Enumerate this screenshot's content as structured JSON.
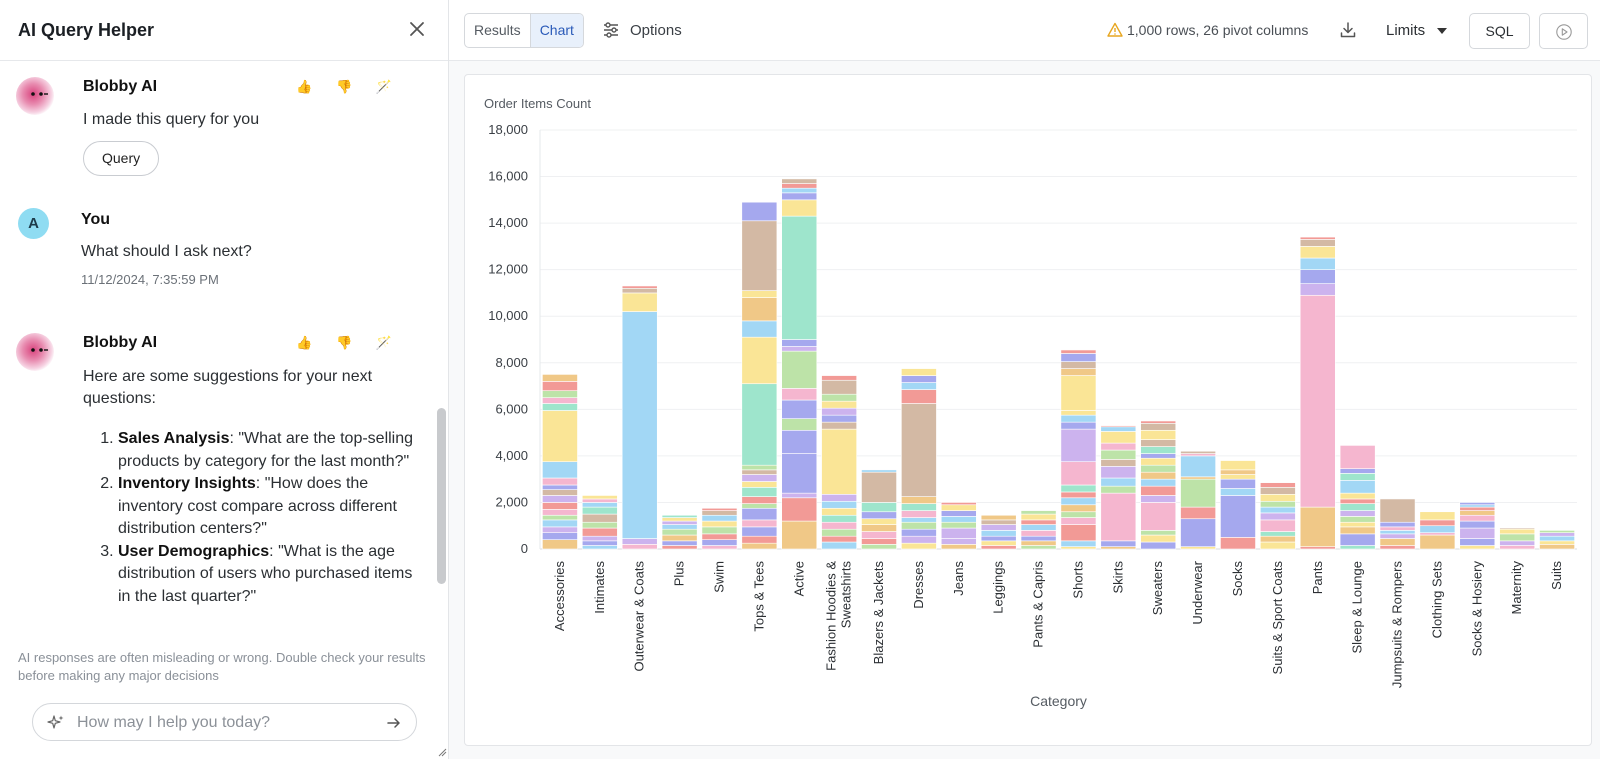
{
  "left_panel": {
    "title": "AI Query Helper",
    "messages": [
      {
        "author": "Blobby AI",
        "text": "I made this query for you",
        "button": "Query",
        "reactions": "👍 👎 🪄"
      },
      {
        "author": "You",
        "avatar_letter": "A",
        "text": "What should I ask next?",
        "timestamp": "11/12/2024, 7:35:59 PM"
      },
      {
        "author": "Blobby AI",
        "reactions": "👍 👎 🪄",
        "intro": "Here are some suggestions for your next questions:",
        "suggestions": [
          {
            "title": "Sales Analysis",
            "body": ": \"What are the top-selling products by category for the last month?\""
          },
          {
            "title": "Inventory Insights",
            "body": ": \"How does the inventory cost compare across different distribution centers?\""
          },
          {
            "title": "User Demographics",
            "body": ": \"What is the age distribution of users who purchased items in the last quarter?\""
          }
        ]
      }
    ],
    "disclaimer": "AI responses are often misleading or wrong. Double check your results before making any major decisions",
    "input_placeholder": "How may I help you today?"
  },
  "toolbar": {
    "tabs": [
      "Results",
      "Chart"
    ],
    "active_tab": "Chart",
    "options_label": "Options",
    "warning": "1,000 rows, 26 pivot columns",
    "limits_label": "Limits",
    "sql_label": "SQL"
  },
  "colors": {
    "palette": [
      "#f0c887",
      "#a5a8ee",
      "#f29a96",
      "#bde3a8",
      "#f5b6cf",
      "#ccb3ee",
      "#fae596",
      "#a2d7f5",
      "#9ee5cc",
      "#d3b9a4"
    ]
  },
  "chart_data": {
    "type": "bar",
    "stacked": true,
    "ylabel": "Order Items Count",
    "xlabel": "Category",
    "ylim": [
      0,
      18000
    ],
    "yticks": [
      0,
      2000,
      4000,
      6000,
      8000,
      10000,
      12000,
      14000,
      16000,
      18000
    ],
    "ytick_labels": [
      "0",
      "2,000",
      "4,000",
      "6,000",
      "8,000",
      "10,000",
      "12,000",
      "14,000",
      "16,000",
      "18,000"
    ],
    "categories": [
      "Accessories",
      "Intimates",
      "Outerwear & Coats",
      "Plus",
      "Swim",
      "Tops & Tees",
      "Active",
      "Fashion Hoodies & Sweatshirts",
      "Blazers & Jackets",
      "Dresses",
      "Jeans",
      "Leggings",
      "Pants & Capris",
      "Shorts",
      "Skirts",
      "Sweaters",
      "Underwear",
      "Socks",
      "Suits & Sport Coats",
      "Pants",
      "Sleep & Lounge",
      "Jumpsuits & Rompers",
      "Clothing Sets",
      "Socks & Hosiery",
      "Maternity",
      "Suits"
    ],
    "category_labels": [
      [
        "Accessories"
      ],
      [
        "Intimates"
      ],
      [
        "Outerwear & Coats"
      ],
      [
        "Plus"
      ],
      [
        "Swim"
      ],
      [
        "Tops & Tees"
      ],
      [
        "Active"
      ],
      [
        "Fashion Hoodies &",
        "Sweatshirts"
      ],
      [
        "Blazers & Jackets"
      ],
      [
        "Dresses"
      ],
      [
        "Jeans"
      ],
      [
        "Leggings"
      ],
      [
        "Pants & Capris"
      ],
      [
        "Shorts"
      ],
      [
        "Skirts"
      ],
      [
        "Sweaters"
      ],
      [
        "Underwear"
      ],
      [
        "Socks"
      ],
      [
        "Suits & Sport Coats"
      ],
      [
        "Pants"
      ],
      [
        "Sleep & Lounge"
      ],
      [
        "Jumpsuits & Rompers"
      ],
      [
        "Clothing Sets"
      ],
      [
        "Socks & Hosiery"
      ],
      [
        "Maternity"
      ],
      [
        "Suits"
      ]
    ],
    "stacks": [
      [
        [
          400,
          0
        ],
        [
          300,
          1
        ],
        [
          250,
          5
        ],
        [
          300,
          7
        ],
        [
          200,
          3
        ],
        [
          250,
          4
        ],
        [
          300,
          2
        ],
        [
          300,
          5
        ],
        [
          250,
          9
        ],
        [
          200,
          1
        ],
        [
          300,
          4
        ],
        [
          700,
          7
        ],
        [
          2200,
          6
        ],
        [
          300,
          8
        ],
        [
          250,
          4
        ],
        [
          300,
          3
        ],
        [
          400,
          2
        ],
        [
          300,
          0
        ]
      ],
      [
        [
          150,
          7
        ],
        [
          200,
          1
        ],
        [
          200,
          5
        ],
        [
          350,
          2
        ],
        [
          250,
          3
        ],
        [
          350,
          9
        ],
        [
          300,
          8
        ],
        [
          200,
          7
        ],
        [
          150,
          4
        ],
        [
          150,
          6
        ]
      ],
      [
        [
          200,
          4
        ],
        [
          250,
          5
        ],
        [
          9750,
          7
        ],
        [
          800,
          6
        ],
        [
          200,
          9
        ],
        [
          100,
          2
        ]
      ],
      [
        [
          150,
          2
        ],
        [
          200,
          1
        ],
        [
          250,
          0
        ],
        [
          250,
          3
        ],
        [
          200,
          7
        ],
        [
          150,
          5
        ],
        [
          150,
          6
        ],
        [
          100,
          8
        ]
      ],
      [
        [
          150,
          4
        ],
        [
          250,
          1
        ],
        [
          250,
          2
        ],
        [
          300,
          3
        ],
        [
          250,
          6
        ],
        [
          250,
          7
        ],
        [
          200,
          9
        ],
        [
          100,
          2
        ]
      ],
      [
        [
          250,
          0
        ],
        [
          300,
          2
        ],
        [
          400,
          1
        ],
        [
          300,
          4
        ],
        [
          500,
          1
        ],
        [
          200,
          3
        ],
        [
          300,
          2
        ],
        [
          400,
          8
        ],
        [
          250,
          6
        ],
        [
          300,
          5
        ],
        [
          200,
          9
        ],
        [
          200,
          3
        ],
        [
          3500,
          8
        ],
        [
          2000,
          6
        ],
        [
          700,
          7
        ],
        [
          1000,
          0
        ],
        [
          300,
          6
        ],
        [
          3000,
          9
        ],
        [
          800,
          1
        ]
      ],
      [
        [
          1200,
          0
        ],
        [
          1000,
          2
        ],
        [
          200,
          5
        ],
        [
          1700,
          1
        ],
        [
          1000,
          1
        ],
        [
          500,
          3
        ],
        [
          800,
          1
        ],
        [
          500,
          4
        ],
        [
          1600,
          3
        ],
        [
          200,
          5
        ],
        [
          300,
          1
        ],
        [
          5300,
          8
        ],
        [
          700,
          6
        ],
        [
          300,
          1
        ],
        [
          200,
          7
        ],
        [
          200,
          2
        ],
        [
          200,
          9
        ]
      ],
      [
        [
          300,
          7
        ],
        [
          250,
          2
        ],
        [
          300,
          3
        ],
        [
          300,
          4
        ],
        [
          300,
          8
        ],
        [
          300,
          6
        ],
        [
          300,
          7
        ],
        [
          300,
          5
        ],
        [
          2800,
          6
        ],
        [
          300,
          9
        ],
        [
          300,
          1
        ],
        [
          300,
          5
        ],
        [
          300,
          6
        ],
        [
          300,
          3
        ],
        [
          600,
          9
        ],
        [
          200,
          2
        ]
      ],
      [
        [
          200,
          3
        ],
        [
          250,
          2
        ],
        [
          300,
          4
        ],
        [
          300,
          0
        ],
        [
          250,
          6
        ],
        [
          300,
          1
        ],
        [
          400,
          8
        ],
        [
          1300,
          9
        ],
        [
          100,
          7
        ]
      ],
      [
        [
          250,
          6
        ],
        [
          300,
          5
        ],
        [
          300,
          1
        ],
        [
          300,
          3
        ],
        [
          200,
          7
        ],
        [
          300,
          4
        ],
        [
          300,
          8
        ],
        [
          300,
          0
        ],
        [
          4000,
          9
        ],
        [
          600,
          2
        ],
        [
          300,
          7
        ],
        [
          300,
          1
        ],
        [
          300,
          6
        ]
      ],
      [
        [
          200,
          0
        ],
        [
          250,
          5
        ],
        [
          450,
          5
        ],
        [
          250,
          3
        ],
        [
          250,
          7
        ],
        [
          250,
          1
        ],
        [
          250,
          6
        ],
        [
          100,
          2
        ]
      ],
      [
        [
          150,
          2
        ],
        [
          200,
          6
        ],
        [
          200,
          1
        ],
        [
          250,
          7
        ],
        [
          250,
          5
        ],
        [
          200,
          9
        ],
        [
          200,
          0
        ]
      ],
      [
        [
          150,
          3
        ],
        [
          200,
          0
        ],
        [
          200,
          1
        ],
        [
          250,
          4
        ],
        [
          250,
          7
        ],
        [
          200,
          2
        ],
        [
          250,
          6
        ],
        [
          150,
          3
        ]
      ],
      [
        [
          100,
          6
        ],
        [
          250,
          7
        ],
        [
          700,
          2
        ],
        [
          300,
          4
        ],
        [
          250,
          3
        ],
        [
          300,
          0
        ],
        [
          300,
          7
        ],
        [
          250,
          2
        ],
        [
          300,
          8
        ],
        [
          1000,
          4
        ],
        [
          1400,
          5
        ],
        [
          300,
          1
        ],
        [
          300,
          7
        ],
        [
          200,
          6
        ],
        [
          1500,
          6
        ],
        [
          300,
          0
        ],
        [
          300,
          9
        ],
        [
          350,
          1
        ],
        [
          150,
          2
        ]
      ],
      [
        [
          100,
          0
        ],
        [
          250,
          1
        ],
        [
          2050,
          4
        ],
        [
          300,
          3
        ],
        [
          350,
          7
        ],
        [
          500,
          5
        ],
        [
          300,
          9
        ],
        [
          400,
          3
        ],
        [
          300,
          4
        ],
        [
          500,
          6
        ],
        [
          200,
          7
        ],
        [
          50,
          2
        ]
      ],
      [
        [
          300,
          1
        ],
        [
          300,
          6
        ],
        [
          200,
          3
        ],
        [
          1200,
          4
        ],
        [
          300,
          5
        ],
        [
          400,
          2
        ],
        [
          300,
          7
        ],
        [
          300,
          0
        ],
        [
          300,
          3
        ],
        [
          300,
          6
        ],
        [
          200,
          1
        ],
        [
          300,
          8
        ],
        [
          300,
          9
        ],
        [
          400,
          6
        ],
        [
          300,
          9
        ],
        [
          100,
          2
        ]
      ],
      [
        [
          100,
          6
        ],
        [
          1200,
          1
        ],
        [
          500,
          2
        ],
        [
          1200,
          3
        ],
        [
          100,
          0
        ],
        [
          900,
          7
        ],
        [
          100,
          4
        ],
        [
          100,
          9
        ]
      ],
      [
        [
          500,
          2
        ],
        [
          1800,
          1
        ],
        [
          300,
          7
        ],
        [
          400,
          1
        ],
        [
          200,
          6
        ],
        [
          200,
          0
        ],
        [
          400,
          6
        ]
      ],
      [
        [
          300,
          6
        ],
        [
          250,
          0
        ],
        [
          200,
          8
        ],
        [
          500,
          4
        ],
        [
          300,
          5
        ],
        [
          250,
          7
        ],
        [
          250,
          3
        ],
        [
          300,
          6
        ],
        [
          300,
          9
        ],
        [
          200,
          2
        ]
      ],
      [
        [
          100,
          2
        ],
        [
          1700,
          0
        ],
        [
          9100,
          4
        ],
        [
          500,
          5
        ],
        [
          600,
          1
        ],
        [
          500,
          7
        ],
        [
          500,
          6
        ],
        [
          300,
          9
        ],
        [
          100,
          2
        ]
      ],
      [
        [
          150,
          8
        ],
        [
          500,
          1
        ],
        [
          300,
          0
        ],
        [
          200,
          6
        ],
        [
          250,
          3
        ],
        [
          250,
          5
        ],
        [
          300,
          8
        ],
        [
          200,
          2
        ],
        [
          250,
          6
        ],
        [
          550,
          7
        ],
        [
          300,
          8
        ],
        [
          200,
          1
        ],
        [
          1000,
          4
        ]
      ],
      [
        [
          150,
          2
        ],
        [
          300,
          0
        ],
        [
          200,
          5
        ],
        [
          150,
          7
        ],
        [
          150,
          4
        ],
        [
          200,
          1
        ],
        [
          1000,
          9
        ]
      ],
      [
        [
          600,
          0
        ],
        [
          100,
          4
        ],
        [
          300,
          7
        ],
        [
          250,
          2
        ],
        [
          350,
          6
        ]
      ],
      [
        [
          150,
          6
        ],
        [
          300,
          1
        ],
        [
          450,
          5
        ],
        [
          300,
          1
        ],
        [
          250,
          4
        ],
        [
          200,
          0
        ],
        [
          150,
          2
        ],
        [
          100,
          7
        ],
        [
          100,
          1
        ]
      ],
      [
        [
          150,
          4
        ],
        [
          200,
          5
        ],
        [
          300,
          3
        ],
        [
          200,
          6
        ],
        [
          50,
          9
        ]
      ],
      [
        [
          200,
          0
        ],
        [
          150,
          6
        ],
        [
          200,
          7
        ],
        [
          150,
          5
        ],
        [
          100,
          3
        ]
      ]
    ]
  }
}
